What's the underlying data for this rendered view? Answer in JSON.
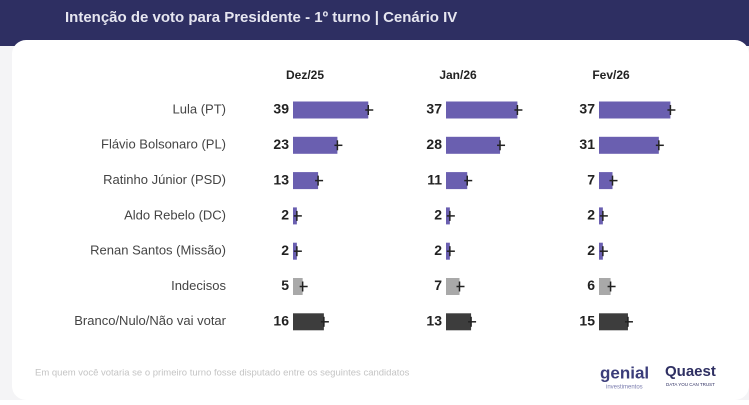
{
  "chart_data": {
    "type": "bar",
    "title": "Intenção de voto para Presidente - 1º turno | Cenário IV",
    "categories": [
      "Lula (PT)",
      "Flávio Bolsonaro (PL)",
      "Ratinho Júnior (PSD)",
      "Aldo Rebelo (DC)",
      "Renan Santos (Missão)",
      "Indecisos",
      "Branco/Nulo/Não vai votar"
    ],
    "colors": [
      "#6a5fb0",
      "#6a5fb0",
      "#6a5fb0",
      "#6a5fb0",
      "#6a5fb0",
      "#a9a9a9",
      "#3d3d3d"
    ],
    "series": [
      {
        "name": "Dez/25",
        "values": [
          39,
          23,
          13,
          2,
          2,
          5,
          16
        ]
      },
      {
        "name": "Jan/26",
        "values": [
          37,
          28,
          11,
          2,
          2,
          7,
          13
        ]
      },
      {
        "name": "Fev/26",
        "values": [
          37,
          31,
          7,
          2,
          2,
          6,
          15
        ]
      }
    ],
    "note": "Em quem você votaria se o primeiro turno fosse disputado entre os seguintes candidatos",
    "logos": {
      "genial": "genial",
      "genial_sub": "investimentos",
      "quaest": "Quaest",
      "quaest_sub": "DATA YOU CAN TRUST"
    }
  }
}
